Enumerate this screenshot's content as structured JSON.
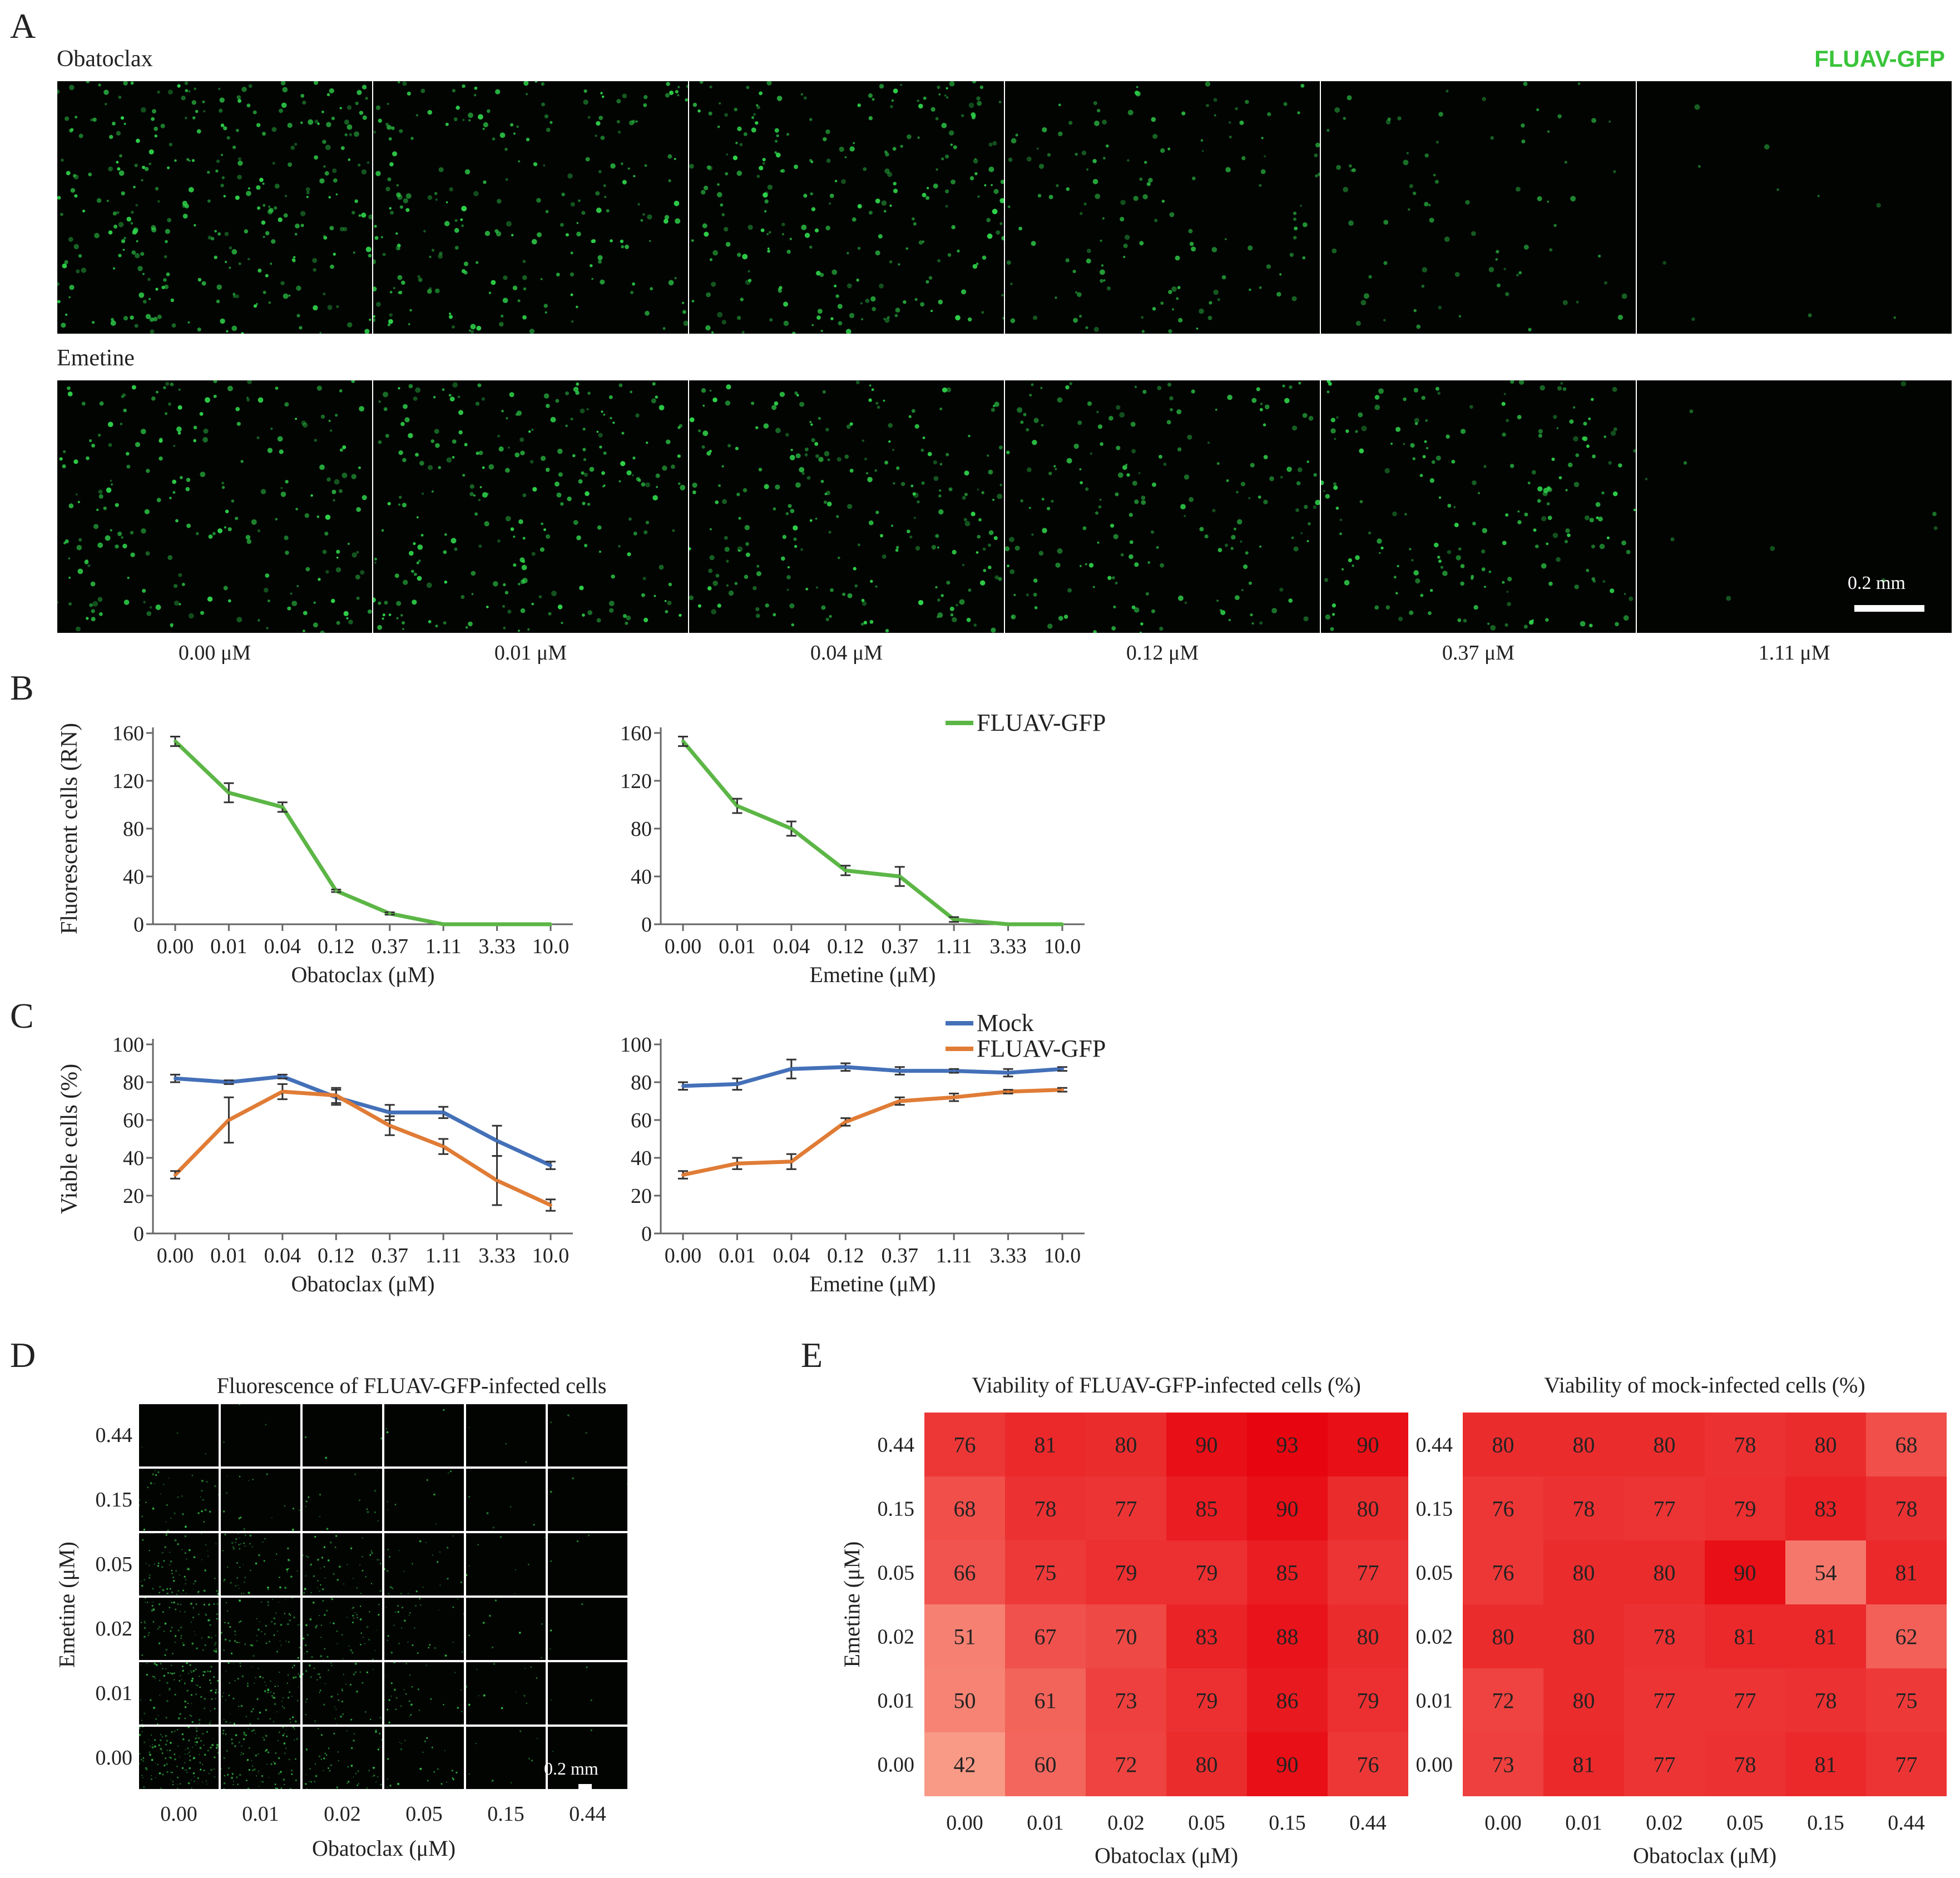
{
  "panelA": {
    "letter": "A",
    "rows": [
      {
        "label": "Obatoclax",
        "intensity": [
          1.0,
          0.75,
          0.8,
          0.45,
          0.25,
          0.03
        ]
      },
      {
        "label": "Emetine",
        "intensity": [
          0.7,
          0.8,
          0.75,
          0.6,
          0.65,
          0.03
        ]
      }
    ],
    "channel_label": "FLUAV-GFP",
    "doses": [
      "0.00 μM",
      "0.01 μM",
      "0.04 μM",
      "0.12 μM",
      "0.37 μM",
      "1.11 μM"
    ],
    "scalebar": "0.2 mm",
    "colors": {
      "gfp": "#2fd24a",
      "background": "#020402"
    }
  },
  "chart_data": [
    {
      "panel": "B",
      "type": "line",
      "categories": [
        "0.00",
        "0.01",
        "0.04",
        "0.12",
        "0.37",
        "1.11",
        "3.33",
        "10.0"
      ],
      "series": [
        {
          "name": "FLUAV-GFP",
          "color": "#5cb646",
          "values": [
            153,
            110,
            98,
            28,
            9,
            0,
            0,
            0
          ],
          "errors": [
            4,
            8,
            4,
            1,
            1,
            0,
            0,
            0
          ]
        }
      ],
      "xlabel": "Obatoclax (μM)",
      "ylabel": "Fluorescent cells (RN)",
      "ylim": [
        0,
        160
      ],
      "yticks": [
        "0",
        "40",
        "80",
        "120",
        "160"
      ],
      "legend": "top-right"
    },
    {
      "panel": "B",
      "type": "line",
      "categories": [
        "0.00",
        "0.01",
        "0.04",
        "0.12",
        "0.37",
        "1.11",
        "3.33",
        "10.0"
      ],
      "series": [
        {
          "name": "FLUAV-GFP",
          "color": "#5cb646",
          "values": [
            153,
            99,
            80,
            45,
            40,
            4,
            0,
            0
          ],
          "errors": [
            4,
            6,
            6,
            4,
            8,
            2,
            0,
            0
          ]
        }
      ],
      "xlabel": "Emetine (μM)",
      "ylabel": "",
      "ylim": [
        0,
        160
      ],
      "yticks": [
        "0",
        "40",
        "80",
        "120",
        "160"
      ]
    },
    {
      "panel": "C",
      "type": "line",
      "categories": [
        "0.00",
        "0.01",
        "0.04",
        "0.12",
        "0.37",
        "1.11",
        "3.33",
        "10.0"
      ],
      "series": [
        {
          "name": "Mock",
          "color": "#4470b8",
          "values": [
            82,
            80,
            83,
            72,
            64,
            64,
            49,
            36
          ],
          "errors": [
            2,
            1,
            1,
            4,
            4,
            3,
            8,
            2
          ]
        },
        {
          "name": "FLUAV-GFP",
          "color": "#e07c36",
          "values": [
            31,
            60,
            75,
            73,
            57,
            46,
            28,
            15
          ],
          "errors": [
            2,
            12,
            4,
            4,
            5,
            4,
            13,
            3
          ]
        }
      ],
      "xlabel": "Obatoclax (μM)",
      "ylabel": "Viable cells (%)",
      "ylim": [
        0,
        100
      ],
      "yticks": [
        "0",
        "20",
        "40",
        "60",
        "80",
        "100"
      ],
      "legend": "top-right"
    },
    {
      "panel": "C",
      "type": "line",
      "categories": [
        "0.00",
        "0.01",
        "0.04",
        "0.12",
        "0.37",
        "1.11",
        "3.33",
        "10.0"
      ],
      "series": [
        {
          "name": "Mock",
          "color": "#4470b8",
          "values": [
            78,
            79,
            87,
            88,
            86,
            86,
            85,
            87
          ],
          "errors": [
            2,
            3,
            5,
            2,
            2,
            1,
            2,
            1
          ]
        },
        {
          "name": "FLUAV-GFP",
          "color": "#e07c36",
          "values": [
            31,
            37,
            38,
            59,
            70,
            72,
            75,
            76
          ],
          "errors": [
            2,
            3,
            4,
            2,
            2,
            2,
            1,
            1
          ]
        }
      ],
      "xlabel": "Emetine (μM)",
      "ylabel": "",
      "ylim": [
        0,
        100
      ],
      "yticks": [
        "0",
        "20",
        "40",
        "60",
        "80",
        "100"
      ]
    },
    {
      "panel": "E",
      "type": "heatmap",
      "title": "Viability of FLUAV-GFP-infected cells (%)",
      "xlabel": "Obatoclax (μM)",
      "ylabel": "Emetine (μM)",
      "x": [
        "0.00",
        "0.01",
        "0.02",
        "0.05",
        "0.15",
        "0.44"
      ],
      "y": [
        "0.44",
        "0.15",
        "0.05",
        "0.02",
        "0.01",
        "0.00"
      ],
      "values": [
        [
          76,
          81,
          80,
          90,
          93,
          90
        ],
        [
          68,
          78,
          77,
          85,
          90,
          80
        ],
        [
          66,
          75,
          79,
          79,
          85,
          77
        ],
        [
          51,
          67,
          70,
          83,
          88,
          80
        ],
        [
          50,
          61,
          73,
          79,
          86,
          79
        ],
        [
          42,
          60,
          72,
          80,
          90,
          76
        ]
      ]
    },
    {
      "panel": "E",
      "type": "heatmap",
      "title": "Viability of mock-infected cells (%)",
      "xlabel": "Obatoclax (μM)",
      "ylabel": "",
      "x": [
        "0.00",
        "0.01",
        "0.02",
        "0.05",
        "0.15",
        "0.44"
      ],
      "y": [
        "0.44",
        "0.15",
        "0.05",
        "0.02",
        "0.01",
        "0.00"
      ],
      "values": [
        [
          80,
          80,
          80,
          78,
          80,
          68
        ],
        [
          76,
          78,
          77,
          79,
          83,
          78
        ],
        [
          76,
          80,
          80,
          90,
          54,
          81
        ],
        [
          80,
          80,
          78,
          81,
          81,
          62
        ],
        [
          72,
          80,
          77,
          77,
          78,
          75
        ],
        [
          73,
          81,
          77,
          78,
          81,
          77
        ]
      ]
    }
  ],
  "panelB": {
    "letter": "B"
  },
  "panelC": {
    "letter": "C"
  },
  "panelD": {
    "letter": "D",
    "title": "Fluorescence of FLUAV-GFP-infected cells",
    "xlabel": "Obatoclax (μM)",
    "ylabel": "Emetine (μM)",
    "x": [
      "0.00",
      "0.01",
      "0.02",
      "0.05",
      "0.15",
      "0.44"
    ],
    "y": [
      "0.44",
      "0.15",
      "0.05",
      "0.02",
      "0.01",
      "0.00"
    ],
    "scalebar": "0.2 mm",
    "intensity": [
      [
        0.02,
        0.02,
        0.02,
        0.02,
        0.02,
        0.02
      ],
      [
        0.25,
        0.1,
        0.08,
        0.05,
        0.03,
        0.02
      ],
      [
        0.45,
        0.35,
        0.3,
        0.15,
        0.05,
        0.02
      ],
      [
        0.5,
        0.4,
        0.35,
        0.2,
        0.05,
        0.02
      ],
      [
        0.6,
        0.5,
        0.3,
        0.2,
        0.08,
        0.02
      ],
      [
        0.85,
        0.6,
        0.35,
        0.15,
        0.05,
        0.02
      ]
    ]
  },
  "panelE": {
    "letter": "E"
  }
}
